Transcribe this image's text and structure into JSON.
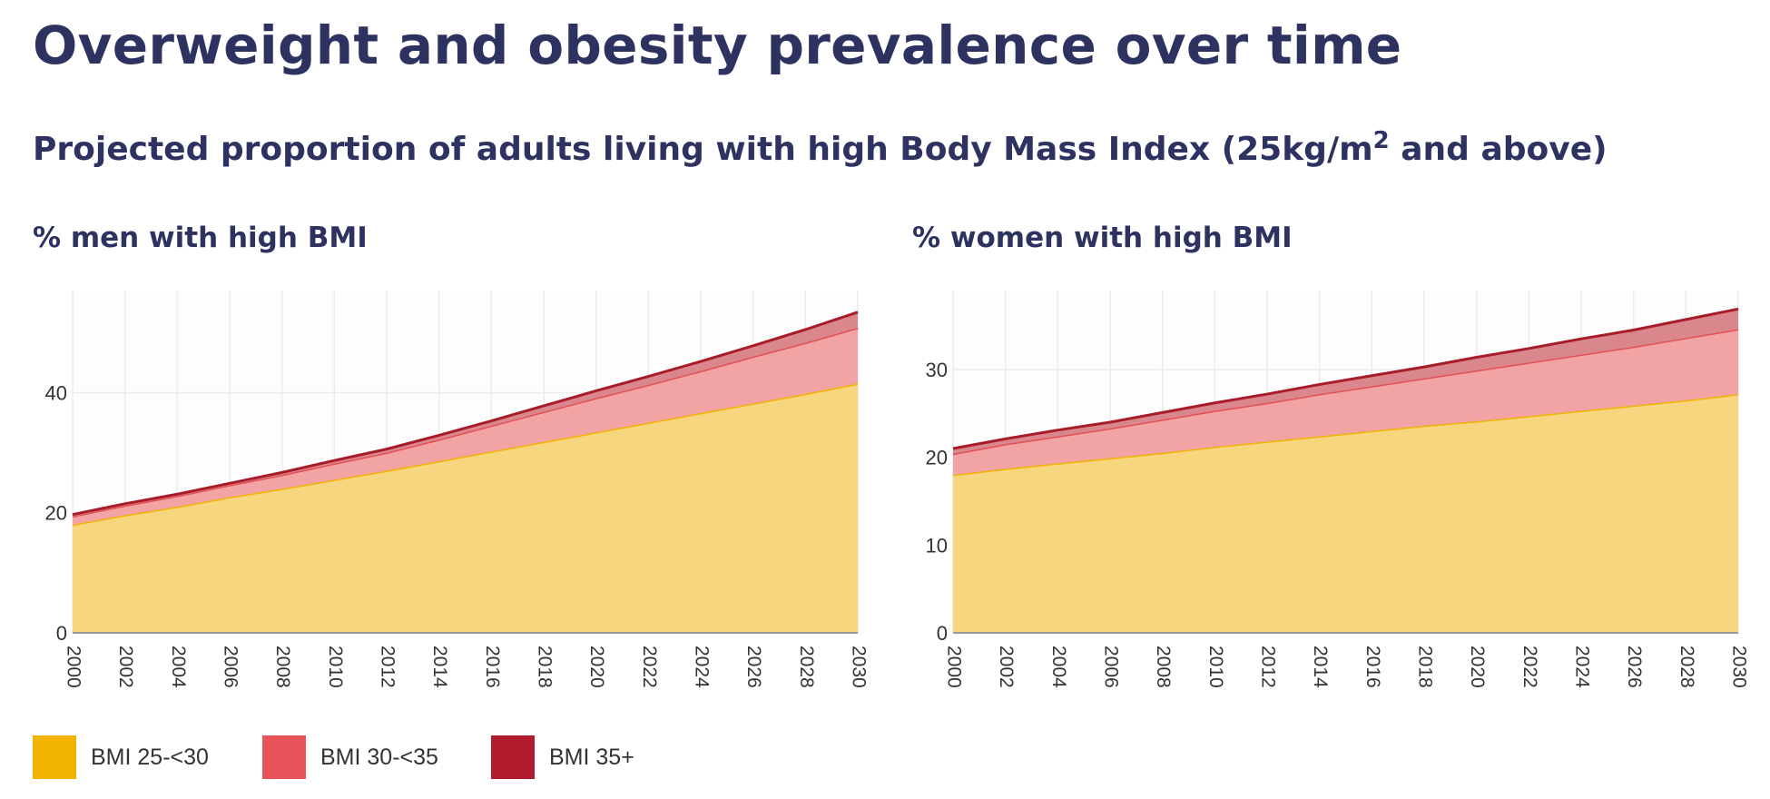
{
  "title": "Overweight and obesity prevalence over time",
  "subtitle_main": "Projected proportion of adults living with high Body Mass Index (25kg/m",
  "subtitle_sup": "2",
  "subtitle_end": " and above)",
  "colors": {
    "bmi_25_30": "#f6d67e",
    "bmi_25_30_line": "#f2b300",
    "bmi_30_35": "#f2a3a4",
    "bmi_30_35_line": "#e35053",
    "bmi_35": "#d9878c",
    "bmi_35_line": "#a81c2a",
    "title": "#2e3261"
  },
  "legend": [
    {
      "label": "BMI 25-<30",
      "color": "#f2b300"
    },
    {
      "label": "BMI 30-<35",
      "color": "#e8545a"
    },
    {
      "label": "BMI 35+",
      "color": "#b01b2e"
    }
  ],
  "chart_data": [
    {
      "type": "area",
      "stacked": true,
      "title": "% men with high BMI",
      "x": [
        2000,
        2002,
        2004,
        2006,
        2008,
        2010,
        2012,
        2014,
        2016,
        2018,
        2020,
        2022,
        2024,
        2026,
        2028,
        2030
      ],
      "x_tick_labels": [
        "2000",
        "2002",
        "2004",
        "2006",
        "2008",
        "2010",
        "2012",
        "2014",
        "2016",
        "2018",
        "2020",
        "2022",
        "2024",
        "2026",
        "2028",
        "2030"
      ],
      "ylim": [
        0,
        57
      ],
      "y_ticks": [
        0,
        20,
        40
      ],
      "grid": true,
      "series": [
        {
          "name": "BMI 25-<30",
          "values": [
            18.0,
            19.6,
            21.0,
            22.6,
            24.0,
            25.5,
            27.0,
            28.6,
            30.2,
            31.8,
            33.4,
            35.0,
            36.6,
            38.2,
            39.8,
            41.5
          ]
        },
        {
          "name": "BMI 30-<35",
          "values": [
            1.4,
            1.6,
            1.8,
            2.0,
            2.3,
            2.7,
            3.0,
            3.6,
            4.3,
            5.0,
            5.7,
            6.3,
            7.0,
            7.8,
            8.5,
            9.3
          ]
        },
        {
          "name": "BMI 35+",
          "values": [
            0.3,
            0.3,
            0.3,
            0.3,
            0.4,
            0.5,
            0.6,
            0.7,
            0.8,
            1.0,
            1.2,
            1.4,
            1.6,
            1.8,
            2.2,
            2.6
          ]
        }
      ]
    },
    {
      "type": "area",
      "stacked": true,
      "title": "% women with high BMI",
      "x": [
        2000,
        2002,
        2004,
        2006,
        2008,
        2010,
        2012,
        2014,
        2016,
        2018,
        2020,
        2022,
        2024,
        2026,
        2028,
        2030
      ],
      "x_tick_labels": [
        "2000",
        "2002",
        "2004",
        "2006",
        "2008",
        "2010",
        "2012",
        "2014",
        "2016",
        "2018",
        "2020",
        "2022",
        "2024",
        "2026",
        "2028",
        "2030"
      ],
      "ylim": [
        0,
        39
      ],
      "y_ticks": [
        0,
        10,
        20,
        30
      ],
      "grid": true,
      "series": [
        {
          "name": "BMI 25-<30",
          "values": [
            18.0,
            18.7,
            19.3,
            19.9,
            20.5,
            21.2,
            21.8,
            22.4,
            23.0,
            23.6,
            24.1,
            24.7,
            25.3,
            25.9,
            26.5,
            27.2
          ]
        },
        {
          "name": "BMI 30-<35",
          "values": [
            2.4,
            2.8,
            3.1,
            3.4,
            3.8,
            4.1,
            4.4,
            4.8,
            5.1,
            5.4,
            5.8,
            6.1,
            6.4,
            6.7,
            7.1,
            7.4
          ]
        },
        {
          "name": "BMI 35+",
          "values": [
            0.6,
            0.6,
            0.7,
            0.7,
            0.8,
            0.9,
            1.0,
            1.1,
            1.2,
            1.3,
            1.5,
            1.6,
            1.8,
            1.9,
            2.1,
            2.3
          ]
        }
      ]
    }
  ]
}
